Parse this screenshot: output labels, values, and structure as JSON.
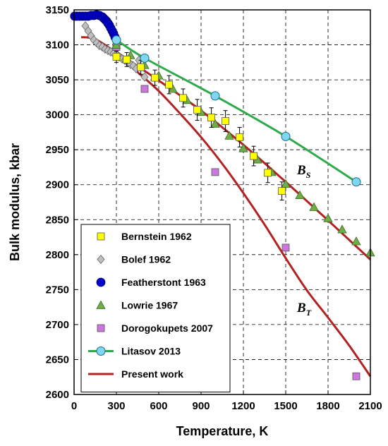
{
  "chart_data": {
    "type": "scatter",
    "xlabel": "Temperature, K",
    "ylabel": "Bulk modulus, kbar",
    "xlim": [
      0,
      2100
    ],
    "ylim": [
      2600,
      3150
    ],
    "xticks": [
      0,
      300,
      600,
      900,
      1200,
      1500,
      1800,
      2100
    ],
    "yticks": [
      2600,
      2650,
      2700,
      2750,
      2800,
      2850,
      2900,
      2950,
      3000,
      3050,
      3100,
      3150
    ],
    "grid": true,
    "legend_position": "bottom-left",
    "annotations": [
      {
        "main": "B",
        "sub": "S",
        "x": 1580,
        "y": 2915
      },
      {
        "main": "B",
        "sub": "T",
        "x": 1580,
        "y": 2718
      }
    ],
    "series": [
      {
        "name": "Bernstein 1962",
        "marker": "square",
        "color": "#FFFF00",
        "x": [
          300,
          373,
          473,
          573,
          673,
          773,
          873,
          973,
          1073,
          1173,
          1273,
          1373,
          1473
        ],
        "y": [
          3083,
          3079,
          3068,
          3053,
          3043,
          3024,
          3007,
          2996,
          2991,
          2968,
          2941,
          2917,
          2891
        ],
        "error": [
          8,
          10,
          10,
          11,
          13,
          13,
          15,
          14,
          15,
          14,
          14,
          14,
          13
        ]
      },
      {
        "name": "Bolef 1962",
        "marker": "diamond",
        "color": "#BFBFBF",
        "x": [
          80,
          100,
          120,
          140,
          160,
          180,
          200,
          220,
          240,
          260,
          280,
          300,
          320,
          340,
          360,
          380,
          400,
          420,
          440,
          460,
          500
        ],
        "y": [
          3127,
          3120,
          3113,
          3107,
          3103,
          3099,
          3097,
          3094,
          3092,
          3090,
          3088,
          3086,
          3083,
          3080,
          3078,
          3075,
          3072,
          3070,
          3066,
          3078,
          3054
        ]
      },
      {
        "name": "Featherstont 1963",
        "marker": "circle",
        "color": "#0000CC",
        "x": [
          4,
          20,
          40,
          60,
          80,
          100,
          120,
          140,
          160,
          180,
          200,
          210,
          220,
          230,
          240,
          250,
          260,
          270,
          280,
          290,
          300
        ],
        "y": [
          3141,
          3141,
          3141,
          3141,
          3141,
          3141,
          3142,
          3142,
          3143,
          3142,
          3140,
          3138,
          3136,
          3134,
          3131,
          3128,
          3124,
          3120,
          3116,
          3111,
          3107
        ]
      },
      {
        "name": "Lowrie 1967",
        "marker": "triangle",
        "color": "#70AD47",
        "x": [
          298,
          400,
          500,
          600,
          700,
          800,
          900,
          1000,
          1100,
          1200,
          1300,
          1400,
          1500,
          1600,
          1700,
          1800,
          1900,
          2000,
          2100
        ],
        "y": [
          3100,
          3085,
          3071,
          3056,
          3037,
          3021,
          3004,
          2987,
          2970,
          2952,
          2936,
          2918,
          2901,
          2885,
          2868,
          2852,
          2836,
          2819,
          2803
        ]
      },
      {
        "name": "Dorogokupets 2007",
        "marker": "square",
        "color": "#CC77DD",
        "x": [
          300,
          500,
          1000,
          1500,
          2000
        ],
        "y": [
          3097,
          3037,
          2918,
          2810,
          2626
        ]
      },
      {
        "name": "Litasov 2013",
        "marker": "circle-line",
        "color": "#7FD6F0",
        "line_color": "#2EAA4A",
        "x": [
          300,
          500,
          1000,
          1500,
          2000
        ],
        "y": [
          3107,
          3081,
          3027,
          2969,
          2904
        ]
      },
      {
        "name": "Present work",
        "marker": "line",
        "color": "#B22222",
        "curves": [
          {
            "label": "BS",
            "x": [
              300,
              600,
              900,
              1200,
              1500,
              1800,
              2100
            ],
            "y": [
              3090,
              3049,
              3006,
              2957,
              2904,
              2849,
              2793
            ]
          },
          {
            "label": "BT",
            "x": [
              50,
              150,
              300,
              450,
              600,
              750,
              900,
              1050,
              1200,
              1350,
              1500,
              1650,
              1800,
              1950,
              2100
            ],
            "y": [
              3111,
              3108,
              3088,
              3061,
              3034,
              3002,
              2968,
              2930,
              2888,
              2843,
              2795,
              2749,
              2710,
              2670,
              2626
            ]
          }
        ]
      }
    ]
  }
}
